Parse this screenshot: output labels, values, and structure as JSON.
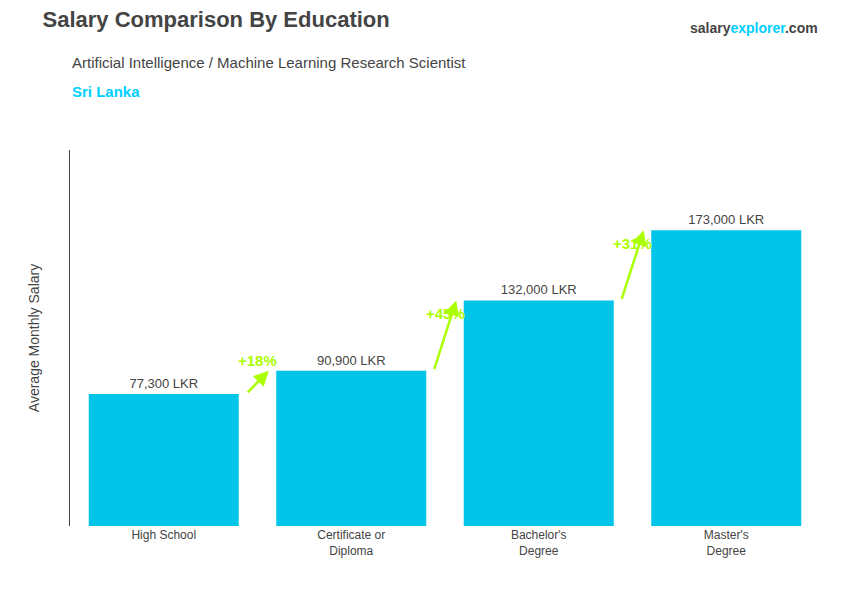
{
  "chart_data": {
    "type": "bar",
    "title": "Salary Comparison By Education",
    "subtitle": "Artificial Intelligence / Machine Learning Research Scientist",
    "country": "Sri Lanka",
    "country_color": "#00cfff",
    "brand": [
      "salary",
      "explorer",
      ".com"
    ],
    "brand_colors": [
      null,
      "#00cfff",
      null
    ],
    "ylabel": "Average Monthly Salary",
    "categories": [
      "High School",
      "Certificate or\nDiploma",
      "Bachelor's\nDegree",
      "Master's\nDegree"
    ],
    "values": [
      77300,
      90900,
      132000,
      173000
    ],
    "value_labels": [
      "77,300 LKR",
      "90,900 LKR",
      "132,000 LKR",
      "173,000 LKR"
    ],
    "data_labels": true,
    "color": "#00c4e8",
    "ylim": [
      0,
      220000
    ],
    "tick_labels": "x",
    "grid": false,
    "changes": [
      {
        "from": 0,
        "to": 1,
        "label": "+18%"
      },
      {
        "from": 1,
        "to": 2,
        "label": "+45%"
      },
      {
        "from": 2,
        "to": 3,
        "label": "+31%"
      }
    ],
    "change_color": "#aaff00"
  }
}
